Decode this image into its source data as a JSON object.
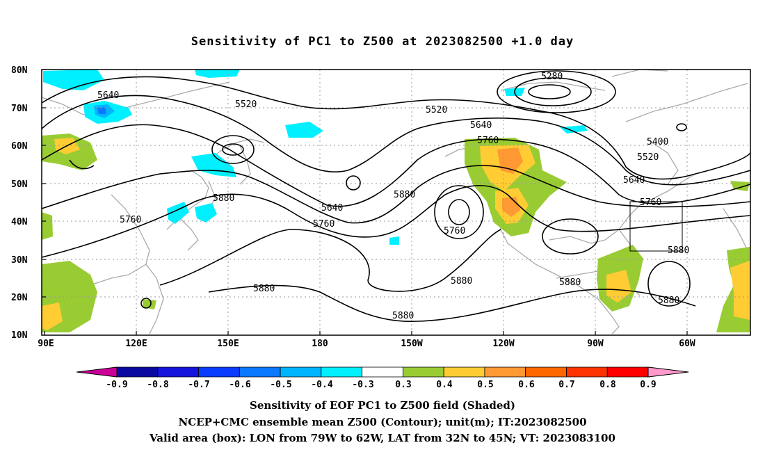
{
  "title": "Sensitivity of PC1 to Z500 at 2023082500 +1.0 day",
  "lat_labels": [
    "80N",
    "70N",
    "60N",
    "50N",
    "40N",
    "30N",
    "20N",
    "10N"
  ],
  "lon_labels": [
    "90E",
    "120E",
    "150E",
    "180",
    "150W",
    "120W",
    "90W",
    "60W"
  ],
  "contour_labels": [
    {
      "text": "5280"
    },
    {
      "text": "5400"
    },
    {
      "text": "5520"
    },
    {
      "text": "5520"
    },
    {
      "text": "5520"
    },
    {
      "text": "5640"
    },
    {
      "text": "5640"
    },
    {
      "text": "5640"
    },
    {
      "text": "5640"
    },
    {
      "text": "5760"
    },
    {
      "text": "5760"
    },
    {
      "text": "5760"
    },
    {
      "text": "5760"
    },
    {
      "text": "5760"
    },
    {
      "text": "5880"
    },
    {
      "text": "5880"
    },
    {
      "text": "5880"
    },
    {
      "text": "5880"
    },
    {
      "text": "5880"
    },
    {
      "text": "5880"
    },
    {
      "text": "5880"
    },
    {
      "text": "5880"
    }
  ],
  "colorbar": {
    "labels": [
      "-0.9",
      "-0.8",
      "-0.7",
      "-0.6",
      "-0.5",
      "-0.4",
      "-0.3",
      "0.3",
      "0.4",
      "0.5",
      "0.6",
      "0.7",
      "0.8",
      "0.9"
    ],
    "colors": [
      "#0a0aa0",
      "#1414dc",
      "#0a3cff",
      "#0a78ff",
      "#00b4ff",
      "#00f0ff",
      "#ffffff",
      "#99cc33",
      "#ffcc33",
      "#ff9933",
      "#ff6600",
      "#ff3300",
      "#ff0000"
    ],
    "low_arrow_color": "#cc0099",
    "high_arrow_color": "#ff99cc"
  },
  "captions": [
    "Sensitivity of EOF PC1 to Z500 field (Shaded)",
    "NCEP+CMC ensemble mean Z500 (Contour); unit(m); IT:2023082500",
    "Valid area (box): LON from 79W to 62W, LAT from 32N to 45N; VT: 2023083100"
  ]
}
